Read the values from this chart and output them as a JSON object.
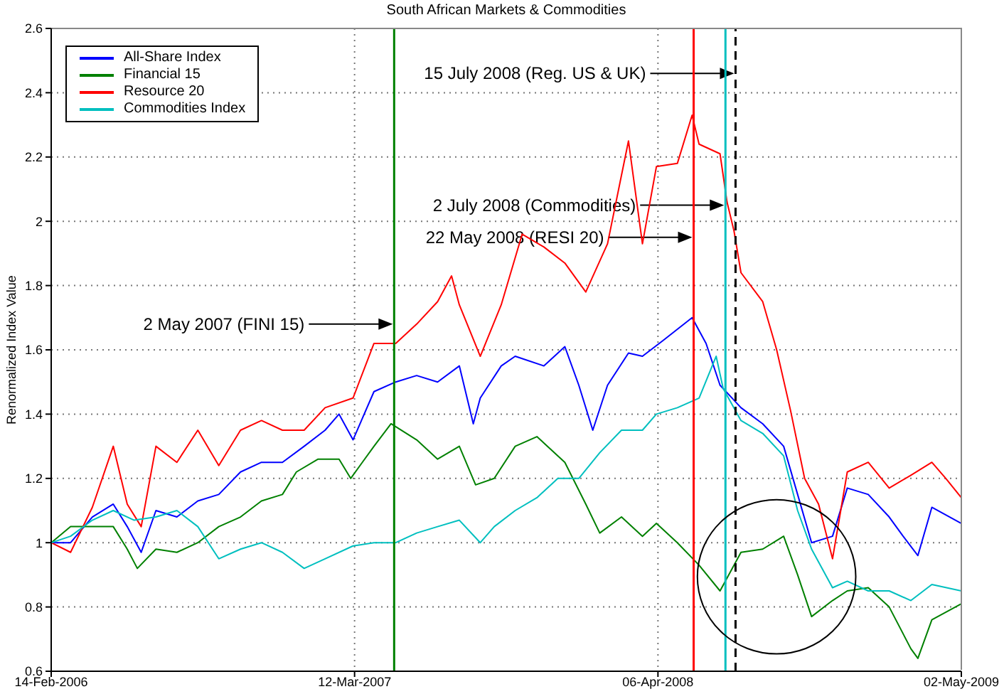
{
  "chart_data": {
    "type": "line",
    "title": "South African Markets & Commodities",
    "ylabel": "Renormalized Index Value",
    "xlim": [
      "2006-02-14",
      "2009-05-02"
    ],
    "xticks": [
      {
        "value": "2006-02-14",
        "label": "14-Feb-2006"
      },
      {
        "value": "2007-03-12",
        "label": "12-Mar-2007"
      },
      {
        "value": "2008-04-06",
        "label": "06-Apr-2008"
      },
      {
        "value": "2009-05-02",
        "label": "02-May-2009"
      }
    ],
    "ylim": [
      0.6,
      2.6
    ],
    "yticks": [
      0.6,
      0.8,
      1,
      1.2,
      1.4,
      1.6,
      1.8,
      2,
      2.2,
      2.4,
      2.6
    ],
    "grid": true,
    "legend": "top left",
    "line_style": "solid",
    "series": [
      {
        "name": "All-Share Index",
        "color": "#0000ff",
        "x": [
          "2006-02-14",
          "2006-03-11",
          "2006-04-08",
          "2006-05-05",
          "2006-05-23",
          "2006-06-10",
          "2006-06-29",
          "2006-07-26",
          "2006-08-22",
          "2006-09-18",
          "2006-10-16",
          "2006-11-12",
          "2006-12-09",
          "2007-01-06",
          "2007-02-02",
          "2007-02-20",
          "2007-03-10",
          "2007-04-06",
          "2007-05-04",
          "2007-05-31",
          "2007-06-27",
          "2007-07-25",
          "2007-08-12",
          "2007-08-21",
          "2007-09-17",
          "2007-10-05",
          "2007-11-11",
          "2007-12-08",
          "2007-12-26",
          "2008-01-13",
          "2008-02-01",
          "2008-02-28",
          "2008-03-17",
          "2008-04-13",
          "2008-05-20",
          "2008-06-07",
          "2008-06-25",
          "2008-07-22",
          "2008-08-19",
          "2008-09-15",
          "2008-10-03",
          "2008-10-21",
          "2008-11-17",
          "2008-12-06",
          "2009-01-02",
          "2009-01-29",
          "2009-02-16",
          "2009-03-07",
          "2009-03-25",
          "2009-05-02"
        ],
        "values": [
          1.0,
          1.0,
          1.08,
          1.12,
          1.05,
          0.97,
          1.1,
          1.08,
          1.13,
          1.15,
          1.22,
          1.25,
          1.25,
          1.3,
          1.35,
          1.4,
          1.32,
          1.47,
          1.5,
          1.52,
          1.5,
          1.55,
          1.37,
          1.45,
          1.55,
          1.58,
          1.55,
          1.61,
          1.49,
          1.35,
          1.49,
          1.59,
          1.58,
          1.63,
          1.7,
          1.62,
          1.49,
          1.42,
          1.37,
          1.3,
          1.15,
          1.0,
          1.02,
          1.17,
          1.15,
          1.08,
          1.02,
          0.96,
          1.11,
          1.06
        ]
      },
      {
        "name": "Financial 15",
        "color": "#008000",
        "x": [
          "2006-02-14",
          "2006-03-11",
          "2006-04-08",
          "2006-05-05",
          "2006-05-23",
          "2006-06-05",
          "2006-06-29",
          "2006-07-26",
          "2006-08-22",
          "2006-09-18",
          "2006-10-16",
          "2006-11-12",
          "2006-12-09",
          "2006-12-27",
          "2007-01-24",
          "2007-02-20",
          "2007-03-07",
          "2007-04-06",
          "2007-04-28",
          "2007-05-31",
          "2007-06-27",
          "2007-07-25",
          "2007-08-15",
          "2007-09-08",
          "2007-10-05",
          "2007-11-02",
          "2007-12-08",
          "2008-01-04",
          "2008-01-22",
          "2008-02-19",
          "2008-03-17",
          "2008-04-04",
          "2008-05-01",
          "2008-05-29",
          "2008-06-25",
          "2008-07-22",
          "2008-08-19",
          "2008-09-15",
          "2008-10-03",
          "2008-10-21",
          "2008-11-17",
          "2008-12-06",
          "2009-01-02",
          "2009-01-29",
          "2009-02-26",
          "2009-03-07",
          "2009-03-25",
          "2009-05-02"
        ],
        "values": [
          1.0,
          1.05,
          1.05,
          1.05,
          0.98,
          0.92,
          0.98,
          0.97,
          1.0,
          1.05,
          1.08,
          1.13,
          1.15,
          1.22,
          1.26,
          1.26,
          1.2,
          1.3,
          1.37,
          1.32,
          1.26,
          1.3,
          1.18,
          1.2,
          1.3,
          1.33,
          1.25,
          1.12,
          1.03,
          1.08,
          1.02,
          1.06,
          1.0,
          0.93,
          0.85,
          0.97,
          0.98,
          1.02,
          0.9,
          0.77,
          0.82,
          0.85,
          0.86,
          0.8,
          0.67,
          0.64,
          0.76,
          0.81
        ]
      },
      {
        "name": "Resource 20",
        "color": "#ff0000",
        "x": [
          "2006-02-14",
          "2006-03-11",
          "2006-04-08",
          "2006-05-05",
          "2006-05-23",
          "2006-06-10",
          "2006-06-29",
          "2006-07-26",
          "2006-08-22",
          "2006-09-18",
          "2006-10-16",
          "2006-11-12",
          "2006-12-09",
          "2007-01-06",
          "2007-02-02",
          "2007-03-10",
          "2007-04-06",
          "2007-05-04",
          "2007-05-31",
          "2007-06-27",
          "2007-07-15",
          "2007-07-25",
          "2007-08-21",
          "2007-09-17",
          "2007-10-14",
          "2007-11-11",
          "2007-12-08",
          "2008-01-04",
          "2008-02-01",
          "2008-02-28",
          "2008-03-17",
          "2008-04-04",
          "2008-05-01",
          "2008-05-20",
          "2008-05-29",
          "2008-06-25",
          "2008-07-04",
          "2008-07-13",
          "2008-07-22",
          "2008-08-19",
          "2008-09-06",
          "2008-09-24",
          "2008-10-12",
          "2008-10-30",
          "2008-11-17",
          "2008-12-06",
          "2009-01-02",
          "2009-01-29",
          "2009-02-26",
          "2009-03-25",
          "2009-04-12",
          "2009-05-02"
        ],
        "values": [
          1.0,
          0.97,
          1.11,
          1.3,
          1.12,
          1.05,
          1.3,
          1.25,
          1.35,
          1.24,
          1.35,
          1.38,
          1.35,
          1.35,
          1.42,
          1.45,
          1.62,
          1.62,
          1.68,
          1.75,
          1.83,
          1.74,
          1.58,
          1.74,
          1.96,
          1.92,
          1.87,
          1.78,
          1.93,
          2.25,
          1.93,
          2.17,
          2.18,
          2.33,
          2.24,
          2.21,
          2.06,
          1.97,
          1.84,
          1.75,
          1.6,
          1.41,
          1.2,
          1.12,
          0.95,
          1.22,
          1.25,
          1.17,
          1.21,
          1.25,
          1.2,
          1.14
        ]
      },
      {
        "name": "Commodities Index",
        "color": "#00bfbf",
        "x": [
          "2006-02-14",
          "2006-03-11",
          "2006-04-08",
          "2006-05-05",
          "2006-06-01",
          "2006-06-29",
          "2006-07-26",
          "2006-08-22",
          "2006-09-18",
          "2006-10-16",
          "2006-11-12",
          "2006-12-09",
          "2007-01-06",
          "2007-02-02",
          "2007-03-10",
          "2007-04-06",
          "2007-05-04",
          "2007-05-31",
          "2007-06-27",
          "2007-07-25",
          "2007-08-21",
          "2007-09-08",
          "2007-10-05",
          "2007-11-02",
          "2007-11-29",
          "2007-12-26",
          "2008-01-22",
          "2008-02-19",
          "2008-03-17",
          "2008-04-04",
          "2008-05-01",
          "2008-05-29",
          "2008-06-20",
          "2008-06-29",
          "2008-07-22",
          "2008-08-19",
          "2008-09-15",
          "2008-10-03",
          "2008-10-21",
          "2008-11-17",
          "2008-12-06",
          "2009-01-02",
          "2009-01-29",
          "2009-02-26",
          "2009-03-25",
          "2009-05-02"
        ],
        "values": [
          1.0,
          1.02,
          1.07,
          1.1,
          1.07,
          1.08,
          1.1,
          1.05,
          0.95,
          0.98,
          1.0,
          0.97,
          0.92,
          0.95,
          0.99,
          1.0,
          1.0,
          1.03,
          1.05,
          1.07,
          1.0,
          1.05,
          1.1,
          1.14,
          1.2,
          1.2,
          1.28,
          1.35,
          1.35,
          1.4,
          1.42,
          1.45,
          1.58,
          1.48,
          1.38,
          1.34,
          1.27,
          1.1,
          0.98,
          0.86,
          0.88,
          0.85,
          0.85,
          0.82,
          0.87,
          0.85
        ]
      }
    ],
    "ref_lines": [
      {
        "axis": "x",
        "value": "2007-05-02",
        "color": "#008000",
        "line_style": "solid"
      },
      {
        "axis": "x",
        "value": "2008-05-22",
        "color": "#ff0000",
        "line_style": "solid"
      },
      {
        "axis": "x",
        "value": "2008-07-02",
        "color": "#00bfbf",
        "line_style": "solid"
      },
      {
        "axis": "x",
        "value": "2008-07-15",
        "color": "#000000",
        "line_style": "dashed"
      }
    ],
    "annotations": [
      "2 May 2007 (FINI 15)",
      "22 May 2008 (RESI 20)",
      "2 July 2008 (Commodities)",
      "15 July 2008 (Reg. US & UK)"
    ]
  }
}
